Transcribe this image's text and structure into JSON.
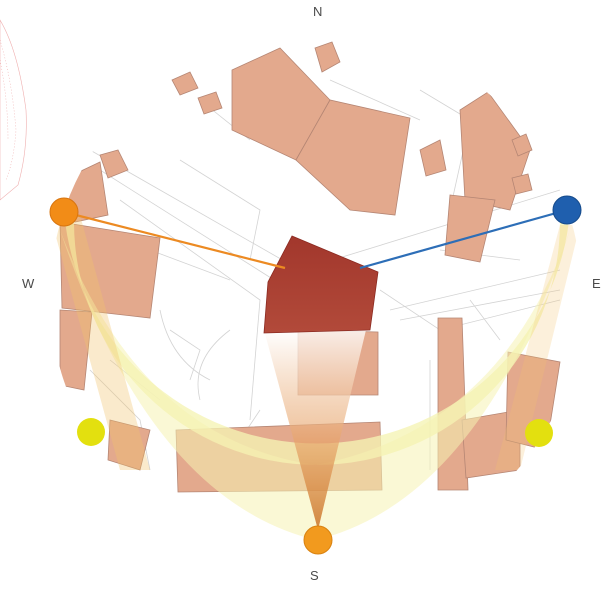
{
  "compass": {
    "north": "N",
    "south": "S",
    "west": "W",
    "east": "E"
  },
  "colors": {
    "building": "#e3a98d",
    "target_building": "#a83e30",
    "sun_path": "#f5f3b3",
    "sunrise_sunset": "#f28c17",
    "noon_sun": "#f29a1e",
    "moon_marker": "#e3e00f",
    "sightline_west": "#ec8a22",
    "sightline_east": "#2d6eb7",
    "street_lines": "#d0d0d0",
    "edge_hatch": "#e26d6d"
  },
  "markers": [
    {
      "id": "west-sun",
      "label": ""
    },
    {
      "id": "east-sun",
      "label": ""
    },
    {
      "id": "south-sun",
      "label": ""
    },
    {
      "id": "southwest-marker",
      "label": ""
    },
    {
      "id": "southeast-marker",
      "label": ""
    }
  ]
}
